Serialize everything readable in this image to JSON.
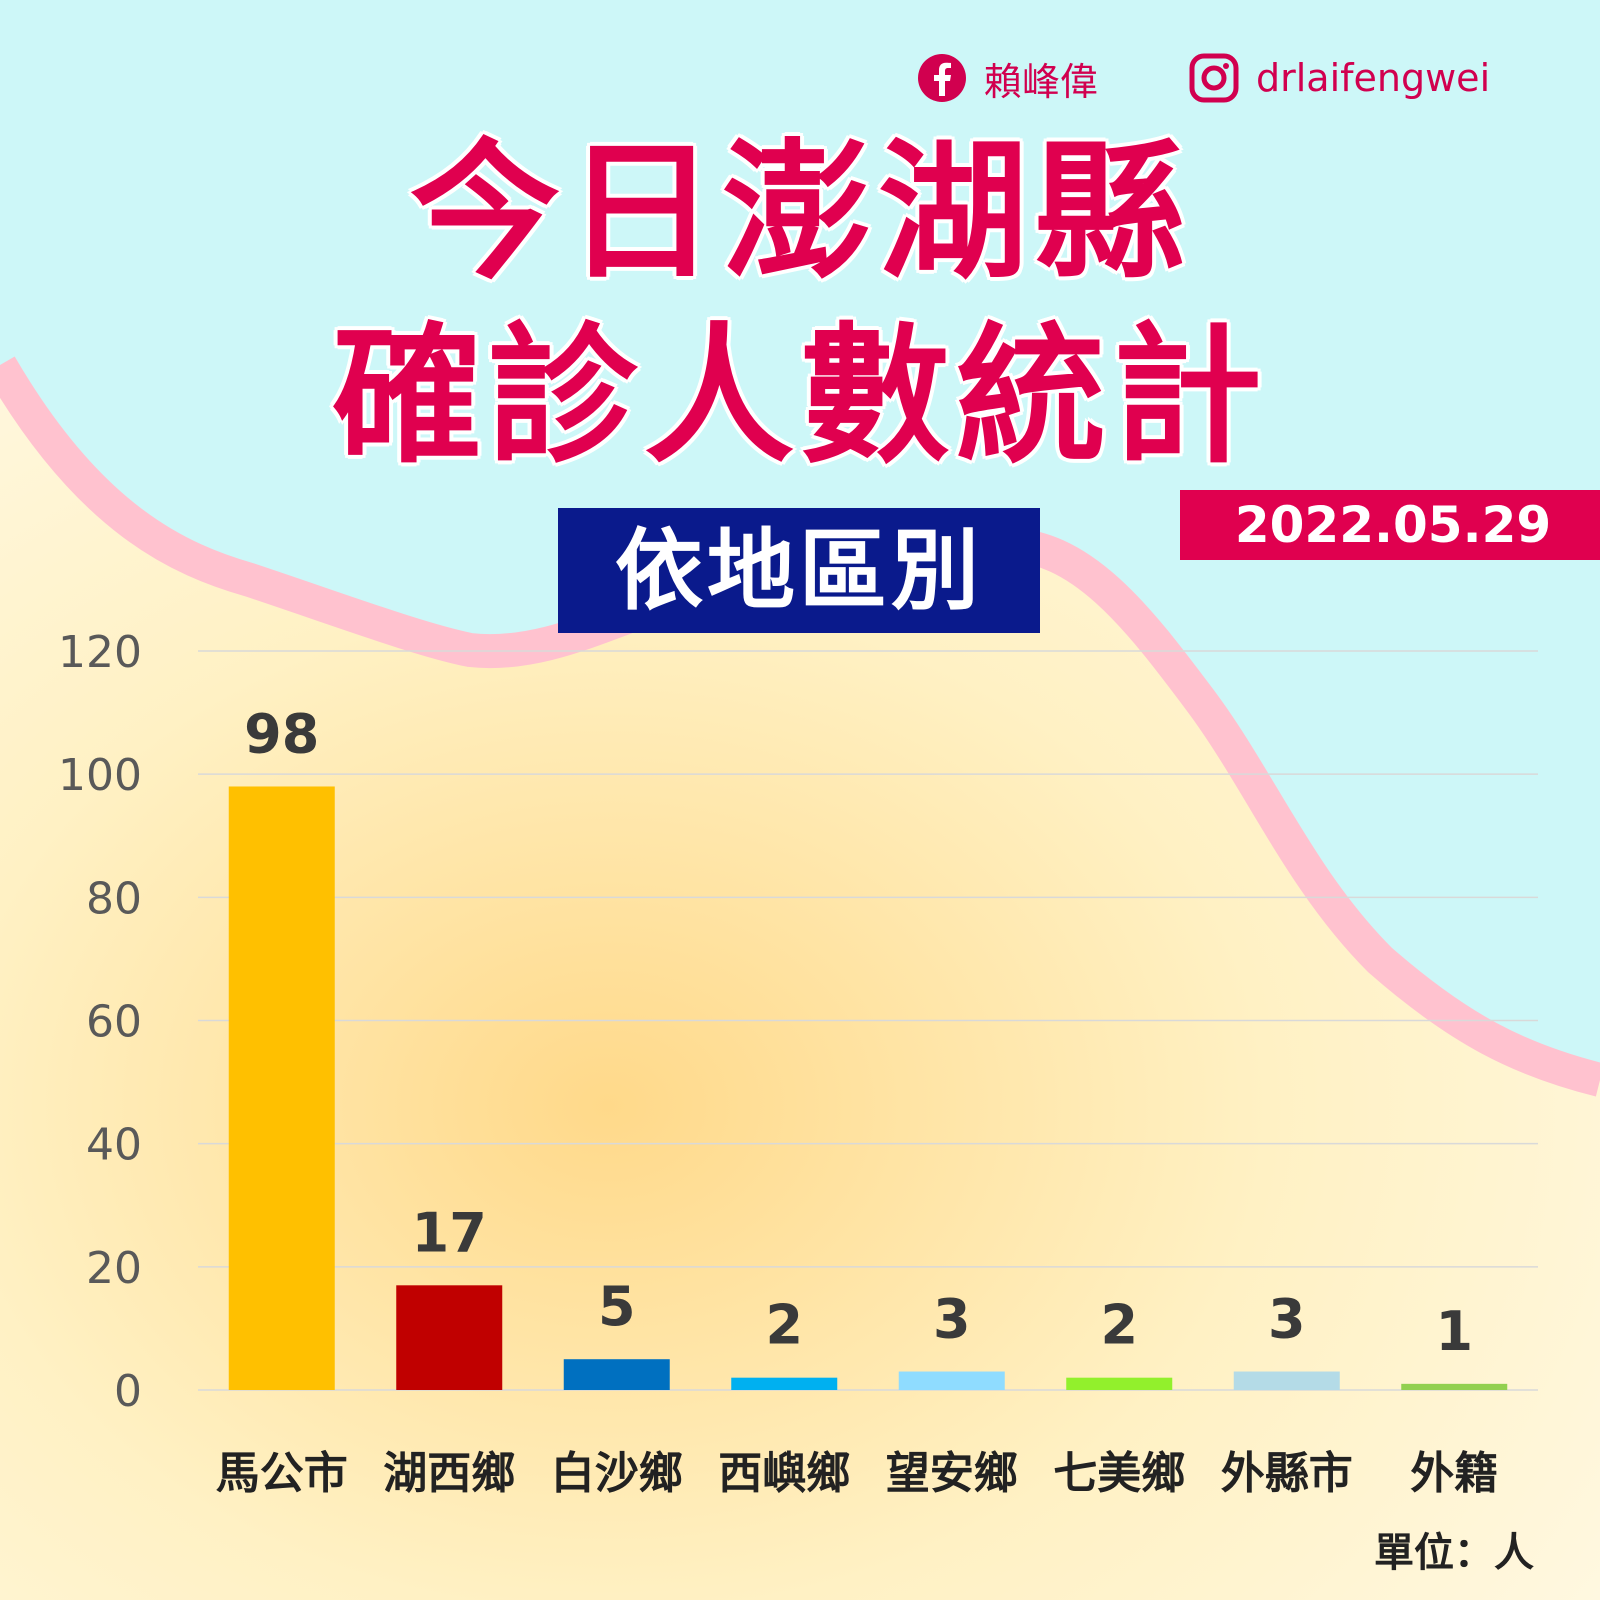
{
  "header": {
    "facebook_name": "賴峰偉",
    "instagram_handle": "drlaifengwei",
    "title_line1": "今日澎湖縣",
    "title_line2": "確診人數統計",
    "subtitle": "依地區別",
    "date": "2022.05.29",
    "unit_note": "單位：人"
  },
  "colors": {
    "title": "#e0004f",
    "subtitle_bg": "#0a1a8c",
    "background_top": "#cdf7f8",
    "background_bottom": "#fff3c8",
    "wave": "#ffc2cf"
  },
  "chart_data": {
    "type": "bar",
    "categories": [
      "馬公市",
      "湖西鄉",
      "白沙鄉",
      "西嶼鄉",
      "望安鄉",
      "七美鄉",
      "外縣市",
      "外籍"
    ],
    "values": [
      98,
      17,
      5,
      2,
      3,
      2,
      3,
      1
    ],
    "bar_colors": [
      "#ffc000",
      "#c00000",
      "#0070c0",
      "#00b0f0",
      "#8fdcff",
      "#92f02c",
      "#b4dbe7",
      "#92d050"
    ],
    "ylim": [
      0,
      120
    ],
    "yticks": [
      0,
      20,
      40,
      60,
      80,
      100,
      120
    ],
    "grid": true,
    "data_labels": true
  }
}
